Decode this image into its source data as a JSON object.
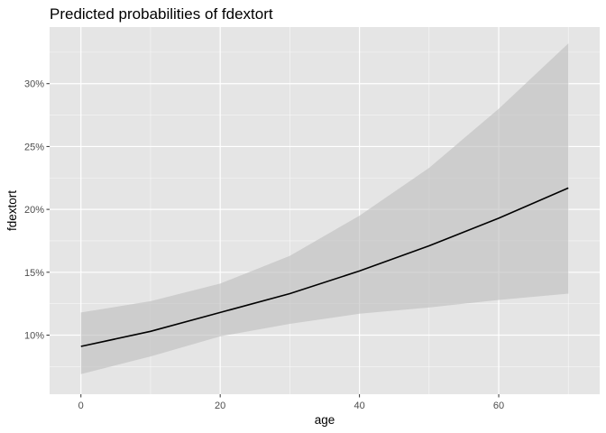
{
  "chart_data": {
    "type": "line",
    "title": "Predicted probabilities of fdextort",
    "xlabel": "age",
    "ylabel": "fdextort",
    "x": [
      0,
      10,
      20,
      30,
      40,
      50,
      60,
      70
    ],
    "series": [
      {
        "values": [
          0.091,
          0.103,
          0.118,
          0.133,
          0.151,
          0.171,
          0.193,
          0.217
        ],
        "ci_lower": [
          0.069,
          0.083,
          0.099,
          0.109,
          0.117,
          0.122,
          0.128,
          0.133
        ],
        "ci_upper": [
          0.118,
          0.127,
          0.141,
          0.163,
          0.195,
          0.233,
          0.28,
          0.332
        ]
      }
    ],
    "xlim": [
      -4.5,
      74.5
    ],
    "ylim": [
      0.053,
      0.345
    ],
    "xticks": [
      0,
      20,
      40,
      60
    ],
    "xtick_labels": [
      "0",
      "20",
      "40",
      "60"
    ],
    "yticks": [
      0.1,
      0.15,
      0.2,
      0.25,
      0.3
    ],
    "ytick_labels": [
      "10%",
      "15%",
      "20%",
      "25%",
      "30%"
    ],
    "grid": true,
    "colors": {
      "panel": "#e5e5e5",
      "grid_major": "#ffffff",
      "line": "#000000",
      "ribbon": "#bdbdbd"
    }
  }
}
